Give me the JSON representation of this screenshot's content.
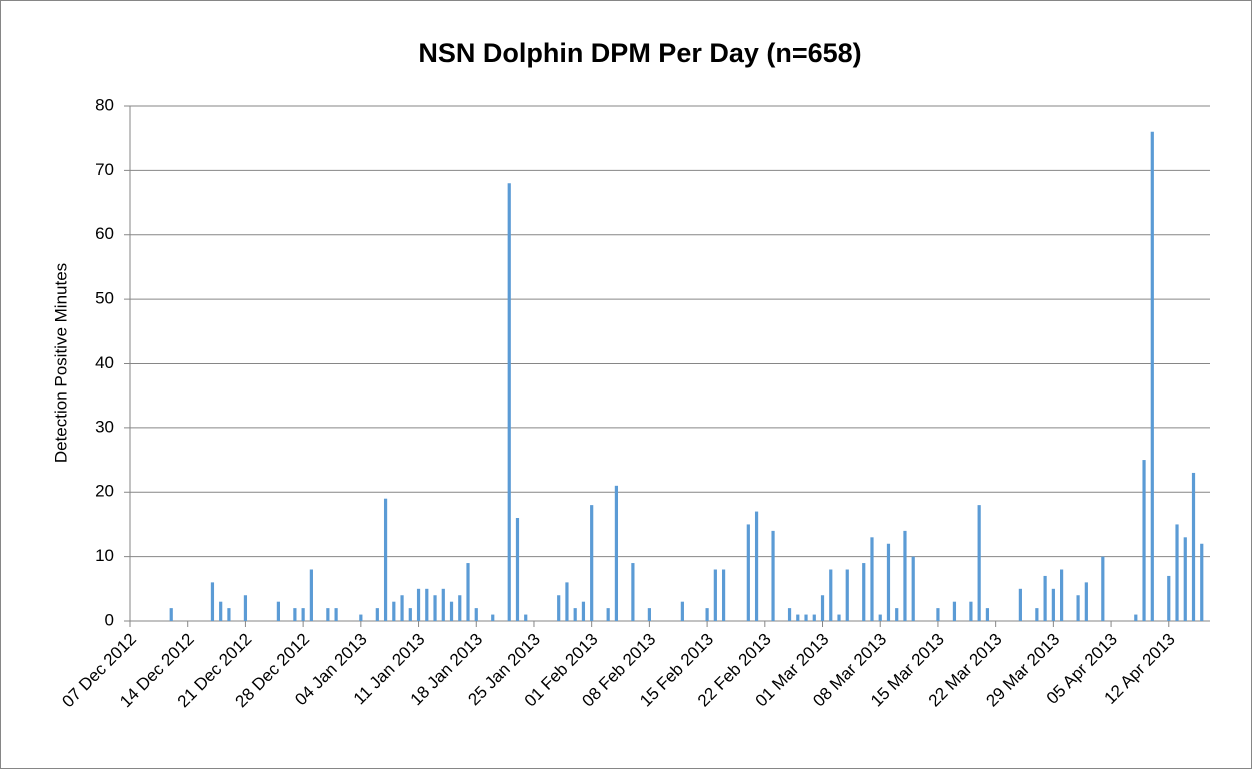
{
  "chart_data": {
    "type": "bar",
    "title": "NSN Dolphin DPM Per Day (n=658)",
    "y_label": "Detection Positive Minutes",
    "color": "#5b9bd5",
    "grid": true,
    "ylim": [
      0,
      80
    ],
    "yticks": [
      0,
      10,
      20,
      30,
      40,
      50,
      60,
      70,
      80
    ],
    "categories": [
      "07 Dec 2012",
      null,
      null,
      null,
      null,
      null,
      null,
      "14 Dec 2012",
      null,
      null,
      null,
      null,
      null,
      null,
      "21 Dec 2012",
      null,
      null,
      null,
      null,
      null,
      null,
      "28 Dec 2012",
      null,
      null,
      null,
      null,
      null,
      null,
      "04 Jan 2013",
      null,
      null,
      null,
      null,
      null,
      null,
      "11 Jan 2013",
      null,
      null,
      null,
      null,
      null,
      null,
      "18 Jan 2013",
      null,
      null,
      null,
      null,
      null,
      null,
      "25 Jan 2013",
      null,
      null,
      null,
      null,
      null,
      null,
      "01 Feb 2013",
      null,
      null,
      null,
      null,
      null,
      null,
      "08 Feb 2013",
      null,
      null,
      null,
      null,
      null,
      null,
      "15 Feb 2013",
      null,
      null,
      null,
      null,
      null,
      null,
      "22 Feb 2013",
      null,
      null,
      null,
      null,
      null,
      null,
      "01 Mar 2013",
      null,
      null,
      null,
      null,
      null,
      null,
      "08 Mar 2013",
      null,
      null,
      null,
      null,
      null,
      null,
      "15 Mar 2013",
      null,
      null,
      null,
      null,
      null,
      null,
      "22 Mar 2013",
      null,
      null,
      null,
      null,
      null,
      null,
      "29 Mar 2013",
      null,
      null,
      null,
      null,
      null,
      null,
      "05 Apr 2013",
      null,
      null,
      null,
      null,
      null,
      null,
      "12 Apr 2013",
      null,
      null,
      null,
      null
    ],
    "values": [
      0,
      0,
      0,
      0,
      0,
      2,
      0,
      0,
      0,
      0,
      6,
      3,
      2,
      0,
      4,
      0,
      0,
      0,
      3,
      0,
      2,
      2,
      8,
      0,
      2,
      2,
      0,
      0,
      1,
      0,
      2,
      19,
      3,
      4,
      2,
      5,
      5,
      4,
      5,
      3,
      4,
      9,
      2,
      0,
      1,
      0,
      68,
      16,
      1,
      0,
      0,
      0,
      4,
      6,
      2,
      3,
      18,
      0,
      2,
      21,
      0,
      9,
      0,
      2,
      0,
      0,
      0,
      3,
      0,
      0,
      2,
      8,
      8,
      0,
      0,
      15,
      17,
      0,
      14,
      0,
      2,
      1,
      1,
      1,
      4,
      8,
      1,
      8,
      0,
      9,
      13,
      1,
      12,
      2,
      14,
      10,
      0,
      0,
      2,
      0,
      3,
      0,
      3,
      18,
      2,
      0,
      0,
      0,
      5,
      0,
      2,
      7,
      5,
      8,
      0,
      4,
      6,
      0,
      10,
      0,
      0,
      0,
      1,
      25,
      76,
      0,
      7,
      15,
      13,
      23,
      12
    ]
  }
}
